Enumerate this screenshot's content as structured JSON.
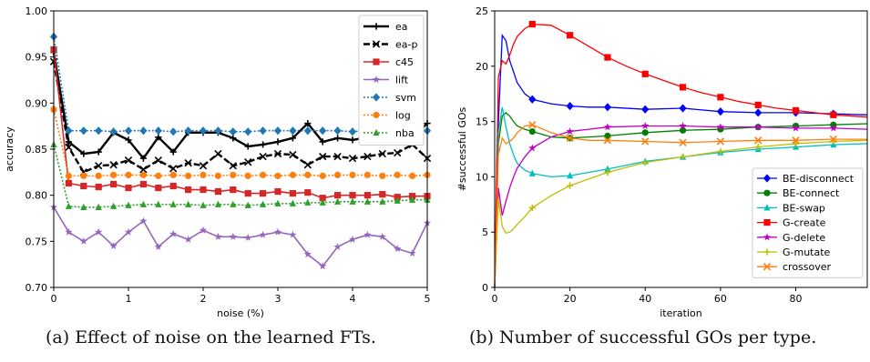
{
  "captions": {
    "a": "(a) Effect of noise on the learned FTs.",
    "b": "(b) Number of successful GOs per type."
  },
  "chart_data": [
    {
      "type": "line",
      "xlabel": "noise (%)",
      "ylabel": "accuracy",
      "xlim": [
        0,
        5
      ],
      "ylim": [
        0.7,
        1.0
      ],
      "xticks": [
        0,
        1,
        2,
        3,
        4,
        5
      ],
      "xtick_labels": [
        "0",
        "1",
        "2",
        "3",
        "4",
        "5"
      ],
      "yticks": [
        0.7,
        0.75,
        0.8,
        0.85,
        0.9,
        0.95,
        1.0
      ],
      "ytick_labels": [
        "0.70",
        "0.75",
        "0.80",
        "0.85",
        "0.90",
        "0.95",
        "1.00"
      ],
      "grid": false,
      "legend_position": "top-right",
      "x": [
        0,
        0.2,
        0.4,
        0.6,
        0.8,
        1.0,
        1.2,
        1.4,
        1.6,
        1.8,
        2.0,
        2.2,
        2.4,
        2.6,
        2.8,
        3.0,
        3.2,
        3.4,
        3.6,
        3.8,
        4.0,
        4.2,
        4.4,
        4.6,
        4.8,
        5.0
      ],
      "series": [
        {
          "name": "ea",
          "color": "#000000",
          "dash": "solid",
          "marker": "plus",
          "values": [
            0.955,
            0.858,
            0.845,
            0.847,
            0.868,
            0.86,
            0.84,
            0.863,
            0.847,
            0.868,
            0.868,
            0.868,
            0.862,
            0.853,
            0.855,
            0.858,
            0.862,
            0.878,
            0.858,
            0.862,
            0.86,
            0.863,
            0.868,
            0.865,
            0.862,
            0.878
          ]
        },
        {
          "name": "ea-p",
          "color": "#000000",
          "dash": "dashed",
          "marker": "x",
          "values": [
            0.945,
            0.852,
            0.825,
            0.832,
            0.833,
            0.838,
            0.828,
            0.838,
            0.829,
            0.835,
            0.832,
            0.845,
            0.832,
            0.836,
            0.842,
            0.845,
            0.844,
            0.833,
            0.842,
            0.842,
            0.84,
            0.842,
            0.845,
            0.846,
            0.855,
            0.84
          ]
        },
        {
          "name": "c45",
          "color": "#d62728",
          "dash": "solid",
          "marker": "square",
          "values": [
            0.958,
            0.813,
            0.81,
            0.809,
            0.812,
            0.808,
            0.812,
            0.808,
            0.81,
            0.806,
            0.806,
            0.804,
            0.806,
            0.802,
            0.802,
            0.804,
            0.802,
            0.803,
            0.797,
            0.8,
            0.8,
            0.8,
            0.801,
            0.798,
            0.799,
            0.799
          ]
        },
        {
          "name": "lift",
          "color": "#9467bd",
          "dash": "solid",
          "marker": "star",
          "values": [
            0.787,
            0.76,
            0.75,
            0.76,
            0.745,
            0.76,
            0.772,
            0.744,
            0.758,
            0.752,
            0.762,
            0.755,
            0.755,
            0.754,
            0.757,
            0.76,
            0.757,
            0.736,
            0.723,
            0.744,
            0.752,
            0.757,
            0.755,
            0.742,
            0.737,
            0.77
          ]
        },
        {
          "name": "svm",
          "color": "#1f77b4",
          "dash": "dotted",
          "marker": "diamond",
          "values": [
            0.972,
            0.87,
            0.87,
            0.87,
            0.869,
            0.87,
            0.87,
            0.87,
            0.869,
            0.87,
            0.87,
            0.87,
            0.869,
            0.869,
            0.87,
            0.87,
            0.87,
            0.87,
            0.87,
            0.87,
            0.869,
            0.87,
            0.869,
            0.866,
            0.866,
            0.87
          ]
        },
        {
          "name": "log",
          "color": "#ff7f0e",
          "dash": "dotted",
          "marker": "circle",
          "values": [
            0.893,
            0.821,
            0.821,
            0.821,
            0.822,
            0.822,
            0.822,
            0.821,
            0.822,
            0.821,
            0.822,
            0.821,
            0.822,
            0.821,
            0.822,
            0.821,
            0.822,
            0.822,
            0.821,
            0.822,
            0.822,
            0.822,
            0.821,
            0.822,
            0.821,
            0.822
          ]
        },
        {
          "name": "nba",
          "color": "#2ca02c",
          "dash": "dotted",
          "marker": "triangle",
          "values": [
            0.855,
            0.788,
            0.787,
            0.787,
            0.788,
            0.789,
            0.79,
            0.79,
            0.79,
            0.79,
            0.789,
            0.79,
            0.79,
            0.789,
            0.79,
            0.791,
            0.791,
            0.792,
            0.792,
            0.793,
            0.793,
            0.793,
            0.793,
            0.794,
            0.795,
            0.795
          ]
        }
      ]
    },
    {
      "type": "line",
      "xlabel": "iteration",
      "ylabel": "#successful GOs",
      "xlim": [
        0,
        99
      ],
      "ylim": [
        0,
        25
      ],
      "xticks": [
        0,
        20,
        40,
        60,
        80
      ],
      "xtick_labels": [
        "0",
        "20",
        "40",
        "60",
        "80"
      ],
      "yticks": [
        0,
        5,
        10,
        15,
        20,
        25
      ],
      "ytick_labels": [
        "0",
        "5",
        "10",
        "15",
        "20",
        "25"
      ],
      "grid": false,
      "legend_position": "lower-right",
      "marker_every": 10,
      "series": [
        {
          "name": "BE-disconnect",
          "color": "#0000ff",
          "marker": "diamond",
          "points": [
            [
              0,
              0
            ],
            [
              1,
              15
            ],
            [
              2,
              22.8
            ],
            [
              3,
              22.3
            ],
            [
              4,
              20.5
            ],
            [
              5,
              19.5
            ],
            [
              6,
              18.5
            ],
            [
              8,
              17.5
            ],
            [
              10,
              17.0
            ],
            [
              15,
              16.6
            ],
            [
              20,
              16.4
            ],
            [
              25,
              16.3
            ],
            [
              30,
              16.3
            ],
            [
              40,
              16.1
            ],
            [
              50,
              16.2
            ],
            [
              60,
              15.9
            ],
            [
              70,
              15.8
            ],
            [
              80,
              15.8
            ],
            [
              90,
              15.7
            ],
            [
              99,
              15.6
            ]
          ]
        },
        {
          "name": "BE-connect",
          "color": "#008000",
          "marker": "circle",
          "points": [
            [
              0,
              0
            ],
            [
              1,
              13
            ],
            [
              2,
              15.5
            ],
            [
              3,
              15.8
            ],
            [
              4,
              15.5
            ],
            [
              5,
              15.0
            ],
            [
              6,
              14.6
            ],
            [
              8,
              14.3
            ],
            [
              10,
              14.1
            ],
            [
              15,
              13.6
            ],
            [
              20,
              13.5
            ],
            [
              25,
              13.6
            ],
            [
              30,
              13.7
            ],
            [
              40,
              14.0
            ],
            [
              50,
              14.2
            ],
            [
              60,
              14.3
            ],
            [
              70,
              14.5
            ],
            [
              80,
              14.6
            ],
            [
              90,
              14.7
            ],
            [
              99,
              14.8
            ]
          ]
        },
        {
          "name": "BE-swap",
          "color": "#00bfbf",
          "marker": "triangle",
          "points": [
            [
              0,
              0
            ],
            [
              1,
              14
            ],
            [
              2,
              16.3
            ],
            [
              3,
              14.5
            ],
            [
              4,
              13.0
            ],
            [
              5,
              12.0
            ],
            [
              6,
              11.2
            ],
            [
              8,
              10.6
            ],
            [
              10,
              10.3
            ],
            [
              15,
              10.0
            ],
            [
              20,
              10.1
            ],
            [
              25,
              10.4
            ],
            [
              30,
              10.7
            ],
            [
              40,
              11.4
            ],
            [
              50,
              11.8
            ],
            [
              60,
              12.2
            ],
            [
              70,
              12.5
            ],
            [
              80,
              12.7
            ],
            [
              90,
              12.9
            ],
            [
              99,
              13.0
            ]
          ]
        },
        {
          "name": "G-create",
          "color": "#ff0000",
          "marker": "square",
          "points": [
            [
              0,
              0
            ],
            [
              1,
              19
            ],
            [
              2,
              20.5
            ],
            [
              3,
              20.2
            ],
            [
              4,
              21.0
            ],
            [
              5,
              22.0
            ],
            [
              6,
              22.7
            ],
            [
              8,
              23.4
            ],
            [
              10,
              23.8
            ],
            [
              15,
              23.7
            ],
            [
              20,
              22.8
            ],
            [
              25,
              21.8
            ],
            [
              30,
              20.8
            ],
            [
              35,
              20.0
            ],
            [
              40,
              19.3
            ],
            [
              45,
              18.7
            ],
            [
              50,
              18.1
            ],
            [
              55,
              17.6
            ],
            [
              60,
              17.2
            ],
            [
              65,
              16.8
            ],
            [
              70,
              16.5
            ],
            [
              75,
              16.2
            ],
            [
              80,
              16.0
            ],
            [
              90,
              15.6
            ],
            [
              99,
              15.4
            ]
          ]
        },
        {
          "name": "G-delete",
          "color": "#bf00bf",
          "marker": "star",
          "points": [
            [
              0,
              0
            ],
            [
              1,
              9
            ],
            [
              2,
              6.5
            ],
            [
              3,
              7.8
            ],
            [
              4,
              9.0
            ],
            [
              5,
              10.0
            ],
            [
              6,
              10.8
            ],
            [
              8,
              11.8
            ],
            [
              10,
              12.6
            ],
            [
              15,
              13.6
            ],
            [
              20,
              14.1
            ],
            [
              25,
              14.3
            ],
            [
              30,
              14.5
            ],
            [
              40,
              14.6
            ],
            [
              50,
              14.6
            ],
            [
              60,
              14.5
            ],
            [
              70,
              14.5
            ],
            [
              80,
              14.4
            ],
            [
              90,
              14.4
            ],
            [
              99,
              14.3
            ]
          ]
        },
        {
          "name": "G-mutate",
          "color": "#bfbf00",
          "marker": "plus",
          "points": [
            [
              0,
              0
            ],
            [
              1,
              8
            ],
            [
              2,
              5.5
            ],
            [
              3,
              4.9
            ],
            [
              4,
              5.0
            ],
            [
              5,
              5.3
            ],
            [
              6,
              5.7
            ],
            [
              8,
              6.4
            ],
            [
              10,
              7.2
            ],
            [
              15,
              8.3
            ],
            [
              20,
              9.2
            ],
            [
              25,
              9.8
            ],
            [
              30,
              10.4
            ],
            [
              40,
              11.3
            ],
            [
              50,
              11.8
            ],
            [
              60,
              12.3
            ],
            [
              70,
              12.7
            ],
            [
              80,
              13.0
            ],
            [
              90,
              13.2
            ],
            [
              99,
              13.3
            ]
          ]
        },
        {
          "name": "crossover",
          "color": "#ff7f0e",
          "marker": "x",
          "points": [
            [
              0,
              0
            ],
            [
              1,
              12
            ],
            [
              2,
              13.5
            ],
            [
              3,
              13.0
            ],
            [
              4,
              13.2
            ],
            [
              5,
              13.5
            ],
            [
              6,
              14.0
            ],
            [
              8,
              14.6
            ],
            [
              10,
              14.7
            ],
            [
              15,
              14.0
            ],
            [
              20,
              13.5
            ],
            [
              25,
              13.3
            ],
            [
              30,
              13.3
            ],
            [
              40,
              13.2
            ],
            [
              50,
              13.1
            ],
            [
              60,
              13.2
            ],
            [
              70,
              13.3
            ],
            [
              80,
              13.3
            ],
            [
              90,
              13.4
            ],
            [
              99,
              13.4
            ]
          ]
        }
      ]
    }
  ]
}
